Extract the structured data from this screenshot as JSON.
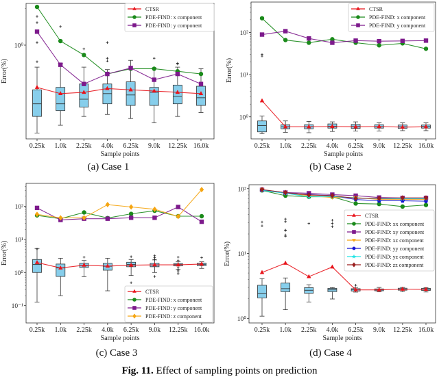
{
  "figure_caption": {
    "label": "Fig. 11.",
    "text": "Effect of sampling points on prediction"
  },
  "chart_data": [
    {
      "type": "box+line",
      "caption": "(a) Case 1",
      "xlabel": "Sample points",
      "ylabel": "Error(%)",
      "y_scale": "log",
      "ylim": [
        0.17,
        2.2
      ],
      "yticks": [
        {
          "v": 1,
          "label": "10⁰"
        }
      ],
      "grid": false,
      "legend": "top-right",
      "categories": [
        "0.25k",
        "1.0k",
        "2.25k",
        "4.0k",
        "6.25k",
        "9.0k",
        "12.25k",
        "16.0k"
      ],
      "boxes": [
        {
          "whislo": 0.19,
          "q1": 0.26,
          "med": 0.33,
          "q3": 0.43,
          "whishi": 0.66,
          "fliers": [
            0.73,
            1.05,
            1.53,
            1.72
          ]
        },
        {
          "whislo": 0.22,
          "q1": 0.29,
          "med": 0.33,
          "q3": 0.45,
          "whishi": 0.71,
          "fliers": [
            1.42
          ]
        },
        {
          "whislo": 0.26,
          "q1": 0.31,
          "med": 0.36,
          "q3": 0.48,
          "whishi": 0.66,
          "fliers": [
            0.93
          ]
        },
        {
          "whislo": 0.27,
          "q1": 0.33,
          "med": 0.4,
          "q3": 0.48,
          "whishi": 0.63,
          "fliers": [
            0.74,
            0.78,
            1.05
          ]
        },
        {
          "whislo": 0.25,
          "q1": 0.32,
          "med": 0.39,
          "q3": 0.5,
          "whishi": 0.75,
          "fliers": []
        },
        {
          "whislo": 0.23,
          "q1": 0.32,
          "med": 0.41,
          "q3": 0.45,
          "whishi": 0.65,
          "fliers": [
            0.78
          ]
        },
        {
          "whislo": 0.26,
          "q1": 0.33,
          "med": 0.38,
          "q3": 0.47,
          "whishi": 0.66,
          "fliers": [
            0.7,
            0.71
          ]
        },
        {
          "whislo": 0.28,
          "q1": 0.32,
          "med": 0.37,
          "q3": 0.46,
          "whishi": 0.64,
          "fliers": []
        }
      ],
      "series": [
        {
          "name": "CTSR",
          "color": "#e8141b",
          "marker": "triangle",
          "values": [
            0.45,
            0.4,
            0.41,
            0.44,
            0.43,
            0.42,
            0.41,
            0.4
          ]
        },
        {
          "name": "PDE-FIND: x component",
          "color": "#1a8a1a",
          "marker": "circle",
          "values": [
            2.06,
            1.08,
            0.83,
            0.58,
            0.64,
            0.64,
            0.61,
            0.58
          ]
        },
        {
          "name": "PDE-FIND: y component",
          "color": "#7d1a8c",
          "marker": "square",
          "values": [
            1.29,
            0.69,
            0.48,
            0.58,
            0.65,
            0.52,
            0.58,
            0.48
          ]
        }
      ]
    },
    {
      "type": "box+line",
      "caption": "(b) Case 2",
      "xlabel": "Sample points",
      "ylabel": "Error(%)",
      "y_scale": "log",
      "ylim": [
        0.3,
        525
      ],
      "yticks": [
        {
          "v": 1,
          "label": "10⁰"
        },
        {
          "v": 10,
          "label": "10¹"
        },
        {
          "v": 100,
          "label": "10²"
        }
      ],
      "grid": false,
      "legend": "top-right",
      "categories": [
        "0.25k",
        "1.0k",
        "2.25k",
        "4.0k",
        "6.25k",
        "9.0k",
        "12.25k",
        "16.0k"
      ],
      "boxes": [
        {
          "whislo": 0.4,
          "q1": 0.44,
          "med": 0.62,
          "q3": 0.8,
          "whishi": 1.04,
          "fliers": [
            27.5,
            30
          ]
        },
        {
          "whislo": 0.43,
          "q1": 0.52,
          "med": 0.58,
          "q3": 0.65,
          "whishi": 0.8,
          "fliers": []
        },
        {
          "whislo": 0.42,
          "q1": 0.52,
          "med": 0.58,
          "q3": 0.65,
          "whishi": 0.78,
          "fliers": []
        },
        {
          "whislo": 0.45,
          "q1": 0.54,
          "med": 0.6,
          "q3": 0.68,
          "whishi": 0.76,
          "fliers": []
        },
        {
          "whislo": 0.46,
          "q1": 0.53,
          "med": 0.59,
          "q3": 0.66,
          "whishi": 0.76,
          "fliers": []
        },
        {
          "whislo": 0.46,
          "q1": 0.54,
          "med": 0.59,
          "q3": 0.65,
          "whishi": 0.72,
          "fliers": []
        },
        {
          "whislo": 0.47,
          "q1": 0.53,
          "med": 0.58,
          "q3": 0.64,
          "whishi": 0.72,
          "fliers": []
        },
        {
          "whislo": 0.47,
          "q1": 0.54,
          "med": 0.59,
          "q3": 0.64,
          "whishi": 0.72,
          "fliers": []
        }
      ],
      "series": [
        {
          "name": "CTSR",
          "color": "#e8141b",
          "marker": "triangle",
          "values": [
            2.4,
            0.58,
            0.58,
            0.59,
            0.58,
            0.59,
            0.57,
            0.58
          ]
        },
        {
          "name": "PDE-FIND: x component",
          "color": "#1a8a1a",
          "marker": "circle",
          "values": [
            217,
            66,
            57,
            69,
            57,
            49.5,
            55,
            41
          ]
        },
        {
          "name": "PDE-FIND: y component",
          "color": "#7d1a8c",
          "marker": "square",
          "values": [
            89,
            107,
            72,
            57,
            64,
            62,
            63,
            64
          ]
        }
      ]
    },
    {
      "type": "box+line",
      "caption": "(c) Case 3",
      "xlabel": "Sample points",
      "ylabel": "Error(%)",
      "y_scale": "log",
      "ylim": [
        0.03,
        490
      ],
      "yticks": [
        {
          "v": 0.1,
          "label": "10⁻¹"
        },
        {
          "v": 1,
          "label": "10⁰"
        },
        {
          "v": 10,
          "label": "10¹"
        },
        {
          "v": 100,
          "label": "10²"
        }
      ],
      "grid": false,
      "legend": "bottom-right",
      "categories": [
        "0.25k",
        "1.0k",
        "2.25k",
        "4.0k",
        "6.25k",
        "9.0k",
        "12.25k",
        "16.0k"
      ],
      "boxes": [
        {
          "whislo": 0.127,
          "q1": 1.0,
          "med": 1.74,
          "q3": 2.47,
          "whishi": 5.3,
          "fliers": [
            5.1
          ]
        },
        {
          "whislo": 0.2,
          "q1": 0.76,
          "med": 1.37,
          "q3": 1.8,
          "whishi": 2.7,
          "fliers": []
        },
        {
          "whislo": 0.75,
          "q1": 1.42,
          "med": 1.61,
          "q3": 1.89,
          "whishi": 2.3,
          "fliers": [
            2.9
          ]
        },
        {
          "whislo": 0.28,
          "q1": 1.17,
          "med": 1.54,
          "q3": 1.89,
          "whishi": 2.7,
          "fliers": []
        },
        {
          "whislo": 0.81,
          "q1": 1.49,
          "med": 1.74,
          "q3": 2.04,
          "whishi": 2.47,
          "fliers": [
            3.0,
            0.49
          ]
        },
        {
          "whislo": 1.0,
          "q1": 1.49,
          "med": 1.69,
          "q3": 1.89,
          "whishi": 2.4,
          "fliers": [
            3.2,
            2.8,
            2.5,
            0.76
          ]
        },
        {
          "whislo": 1.23,
          "q1": 1.58,
          "med": 1.74,
          "q3": 1.86,
          "whishi": 2.1,
          "fliers": [
            2.9,
            2.3,
            1.37,
            1.17,
            1.05,
            0.92
          ]
        },
        {
          "whislo": 1.33,
          "q1": 1.61,
          "med": 1.77,
          "q3": 1.92,
          "whishi": 2.1,
          "fliers": [
            2.8
          ]
        }
      ],
      "series": [
        {
          "name": "CTSR",
          "color": "#e8141b",
          "marker": "triangle",
          "values": [
            2.0,
            1.37,
            1.66,
            1.56,
            1.66,
            1.7,
            1.7,
            1.8
          ]
        },
        {
          "name": "PDE-FIND: x component",
          "color": "#1a8a1a",
          "marker": "circle",
          "values": [
            53,
            42,
            65,
            44,
            59,
            73,
            50,
            50
          ]
        },
        {
          "name": "PDE-FIND: y component",
          "color": "#7d1a8c",
          "marker": "square",
          "values": [
            89,
            38.6,
            42,
            42,
            45,
            45,
            95,
            34
          ]
        },
        {
          "name": "PDE-FIND: z component",
          "color": "#f5a511",
          "marker": "diamond",
          "values": [
            57,
            44.6,
            45,
            112,
            95,
            81,
            49,
            318
          ]
        }
      ]
    },
    {
      "type": "box+line",
      "caption": "(d) Case 4",
      "xlabel": "Sample points",
      "ylabel": "Error(%)",
      "y_scale": "log",
      "ylim": [
        0.85,
        115
      ],
      "yticks": [
        {
          "v": 1,
          "label": "10⁰"
        },
        {
          "v": 10,
          "label": "10¹"
        },
        {
          "v": 100,
          "label": "10²"
        }
      ],
      "grid": false,
      "legend": "right",
      "categories": [
        "0.25k",
        "1.0k",
        "2.25k",
        "4.0k",
        "6.25k",
        "9.0k",
        "12.25k",
        "16.0k"
      ],
      "boxes": [
        {
          "whislo": 1.08,
          "q1": 2.07,
          "med": 2.44,
          "q3": 3.24,
          "whishi": 4.1,
          "fliers": [
            26.7,
            30.6
          ]
        },
        {
          "whislo": 1.36,
          "q1": 2.58,
          "med": 2.87,
          "q3": 3.5,
          "whishi": 4.2,
          "fliers": [
            18.5,
            19.3,
            22.7,
            23,
            31,
            34
          ]
        },
        {
          "whislo": 1.79,
          "q1": 2.44,
          "med": 2.71,
          "q3": 2.98,
          "whishi": 3.3,
          "fliers": [
            29
          ]
        },
        {
          "whislo": 1.99,
          "q1": 2.58,
          "med": 2.75,
          "q3": 2.9,
          "whishi": 2.98,
          "fliers": [
            26,
            29,
            32.6
          ]
        },
        {
          "whislo": 2.54,
          "q1": 2.64,
          "med": 2.75,
          "q3": 2.87,
          "whishi": 3.0,
          "fliers": [
            3.24
          ]
        },
        {
          "whislo": 2.56,
          "q1": 2.66,
          "med": 2.75,
          "q3": 2.85,
          "whishi": 3.0,
          "fliers": []
        },
        {
          "whislo": 2.58,
          "q1": 2.72,
          "med": 2.82,
          "q3": 2.92,
          "whishi": 3.0,
          "fliers": []
        },
        {
          "whislo": 2.55,
          "q1": 2.7,
          "med": 2.8,
          "q3": 2.9,
          "whishi": 2.98,
          "fliers": []
        }
      ],
      "series": [
        {
          "name": "CTSR",
          "color": "#e8141b",
          "marker": "triangle",
          "values": [
            5.1,
            7.1,
            4.4,
            6.2,
            2.75,
            2.75,
            2.82,
            2.8
          ]
        },
        {
          "name": "PDE-FIND: xx component",
          "color": "#1a8a1a",
          "marker": "circle",
          "values": [
            94,
            78,
            75,
            75,
            59,
            58,
            53,
            56
          ]
        },
        {
          "name": "PDE-FIND: xy component",
          "color": "#7d1a8c",
          "marker": "square",
          "values": [
            96,
            87,
            85,
            81,
            78,
            73,
            72,
            72
          ]
        },
        {
          "name": "PDE-FIND: xz component",
          "color": "#f5a511",
          "marker": "triangle-down",
          "values": [
            96,
            85,
            78,
            73,
            73,
            68,
            68,
            68
          ]
        },
        {
          "name": "PDE-FIND: yy component",
          "color": "#1414d2",
          "marker": "pentagon",
          "values": [
            96,
            85,
            81,
            78,
            68,
            65,
            65,
            64
          ]
        },
        {
          "name": "PDE-FIND: yz component",
          "color": "#22e5e5",
          "marker": "star",
          "values": [
            94,
            85,
            75,
            76,
            72,
            70,
            70,
            70
          ]
        },
        {
          "name": "PDE-FIND: zz component",
          "color": "#9a1e1e",
          "marker": "diamond",
          "values": [
            97,
            87,
            80,
            78,
            71,
            71,
            72,
            72
          ]
        }
      ]
    }
  ]
}
